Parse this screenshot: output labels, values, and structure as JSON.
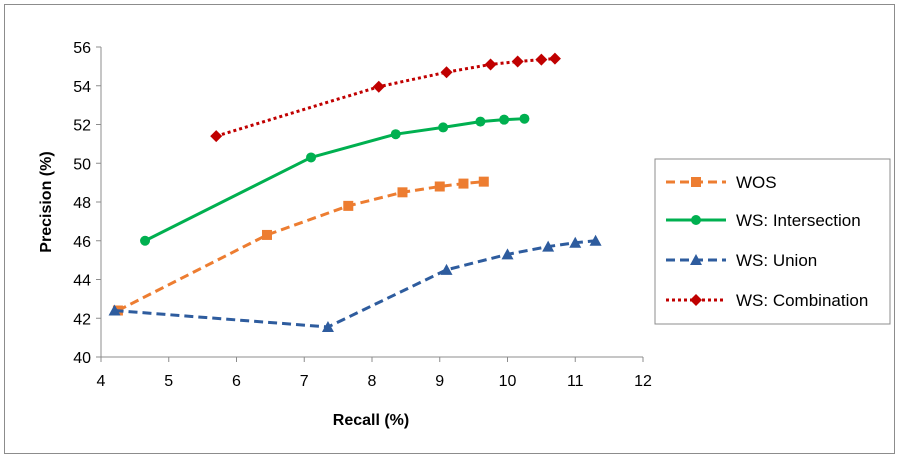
{
  "chart_data": {
    "type": "line",
    "title": "",
    "xlabel": "Recall (%)",
    "ylabel": "Precision (%)",
    "xlim": [
      4,
      12
    ],
    "ylim": [
      40,
      56
    ],
    "xticks": [
      "4",
      "5",
      "6",
      "7",
      "8",
      "9",
      "10",
      "11",
      "12"
    ],
    "yticks": [
      "40",
      "42",
      "44",
      "46",
      "48",
      "50",
      "52",
      "54",
      "56"
    ],
    "grid": false,
    "legend_position": "right",
    "series": [
      {
        "name": "WOS",
        "color": "#ED7D31",
        "line_style": "dashed",
        "marker": "square",
        "points": [
          [
            4.25,
            42.4
          ],
          [
            6.45,
            46.3
          ],
          [
            7.65,
            47.8
          ],
          [
            8.45,
            48.5
          ],
          [
            9.0,
            48.8
          ],
          [
            9.35,
            48.95
          ],
          [
            9.65,
            49.05
          ]
        ]
      },
      {
        "name": "WS: Intersection",
        "color": "#00B050",
        "line_style": "solid",
        "marker": "circle",
        "points": [
          [
            4.65,
            46.0
          ],
          [
            7.1,
            50.3
          ],
          [
            8.35,
            51.5
          ],
          [
            9.05,
            51.85
          ],
          [
            9.6,
            52.15
          ],
          [
            9.95,
            52.25
          ],
          [
            10.25,
            52.3
          ]
        ]
      },
      {
        "name": "WS: Union",
        "color": "#2E5C9E",
        "line_style": "dashed",
        "marker": "triangle",
        "points": [
          [
            4.2,
            42.4
          ],
          [
            7.35,
            41.55
          ],
          [
            9.1,
            44.5
          ],
          [
            10.0,
            45.3
          ],
          [
            10.6,
            45.7
          ],
          [
            11.0,
            45.9
          ],
          [
            11.3,
            46.0
          ]
        ]
      },
      {
        "name": "WS: Combination",
        "color": "#C00000",
        "line_style": "dotted",
        "marker": "diamond",
        "points": [
          [
            5.7,
            51.4
          ],
          [
            8.1,
            53.95
          ],
          [
            9.1,
            54.7
          ],
          [
            9.75,
            55.1
          ],
          [
            10.15,
            55.25
          ],
          [
            10.5,
            55.35
          ],
          [
            10.7,
            55.4
          ]
        ]
      }
    ]
  }
}
